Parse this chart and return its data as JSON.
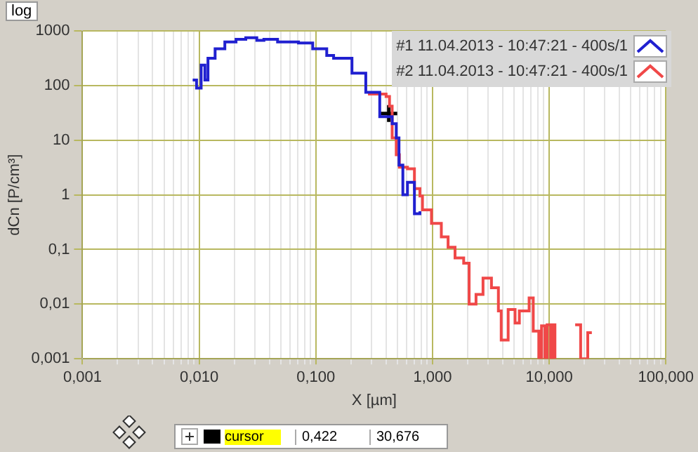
{
  "chart_data": {
    "type": "step",
    "xlabel": "X [µm]",
    "ylabel": "dCn [P/cm³]",
    "log": "xy",
    "grid": true,
    "legend": "top right",
    "xlim": [
      0.001,
      100
    ],
    "ylim": [
      0.001,
      1000
    ],
    "xticks": [
      {
        "value": 0.001,
        "label": "0,001"
      },
      {
        "value": 0.002,
        "label": null
      },
      {
        "value": 0.003,
        "label": null
      },
      {
        "value": 0.004,
        "label": null
      },
      {
        "value": 0.005,
        "label": null
      },
      {
        "value": 0.006,
        "label": null
      },
      {
        "value": 0.007,
        "label": null
      },
      {
        "value": 0.008,
        "label": null
      },
      {
        "value": 0.009,
        "label": null
      },
      {
        "value": 0.01,
        "label": "0,010"
      },
      {
        "value": 0.02,
        "label": null
      },
      {
        "value": 0.03,
        "label": null
      },
      {
        "value": 0.04,
        "label": null
      },
      {
        "value": 0.05,
        "label": null
      },
      {
        "value": 0.06,
        "label": null
      },
      {
        "value": 0.07,
        "label": null
      },
      {
        "value": 0.08,
        "label": null
      },
      {
        "value": 0.09,
        "label": null
      },
      {
        "value": 0.1,
        "label": "0,100"
      },
      {
        "value": 0.2,
        "label": null
      },
      {
        "value": 0.3,
        "label": null
      },
      {
        "value": 0.4,
        "label": null
      },
      {
        "value": 0.5,
        "label": null
      },
      {
        "value": 0.6,
        "label": null
      },
      {
        "value": 0.7,
        "label": null
      },
      {
        "value": 0.8,
        "label": null
      },
      {
        "value": 0.9,
        "label": null
      },
      {
        "value": 1,
        "label": "1,000"
      },
      {
        "value": 2,
        "label": null
      },
      {
        "value": 3,
        "label": null
      },
      {
        "value": 4,
        "label": null
      },
      {
        "value": 5,
        "label": null
      },
      {
        "value": 6,
        "label": null
      },
      {
        "value": 7,
        "label": null
      },
      {
        "value": 8,
        "label": null
      },
      {
        "value": 9,
        "label": null
      },
      {
        "value": 10,
        "label": "10,000"
      },
      {
        "value": 20,
        "label": null
      },
      {
        "value": 30,
        "label": null
      },
      {
        "value": 40,
        "label": null
      },
      {
        "value": 50,
        "label": null
      },
      {
        "value": 60,
        "label": null
      },
      {
        "value": 70,
        "label": null
      },
      {
        "value": 80,
        "label": null
      },
      {
        "value": 90,
        "label": null
      },
      {
        "value": 100,
        "label": "100,000"
      }
    ],
    "yticks": [
      {
        "value": 0.001,
        "label": "0,001"
      },
      {
        "value": 0.01,
        "label": "0,01"
      },
      {
        "value": 0.1,
        "label": "0,1"
      },
      1,
      10,
      100,
      1000
    ],
    "annotations": [
      "log",
      "cursor",
      "0,422",
      "30,676"
    ],
    "series": [
      {
        "name": "#1 11.04.2013 - 10:47:21 - 400s/1",
        "color": "#2020d0",
        "x": [
          0.0088,
          0.0095,
          0.0104,
          0.0112,
          0.0119,
          0.0137,
          0.0166,
          0.0207,
          0.0251,
          0.0312,
          0.0359,
          0.047,
          0.071,
          0.094,
          0.124,
          0.142,
          0.204,
          0.268,
          0.353,
          0.428,
          0.451,
          0.489,
          0.516,
          0.557,
          0.61,
          0.7,
          0.78
        ],
        "values": [
          126,
          90,
          237,
          126,
          316,
          470,
          630,
          700,
          750,
          670,
          700,
          630,
          600,
          470,
          355,
          316,
          168,
          75,
          27,
          27,
          20,
          11,
          3.5,
          1,
          1.7,
          0.45,
          0.5
        ]
      },
      {
        "name": "#2 11.04.2013 - 10:47:21 - 400s/1",
        "color": "#f04848",
        "x": [
          0.28,
          0.4,
          0.428,
          0.451,
          0.489,
          0.52,
          0.61,
          0.7,
          0.78,
          0.82,
          0.98,
          1.19,
          1.36,
          1.56,
          1.85,
          2.06,
          2.36,
          2.71,
          3.2,
          3.67,
          3.88,
          4.45,
          5.1,
          5.55,
          6.73,
          7.3,
          8.15,
          8.6,
          9.2,
          9.6,
          10.3,
          10.7,
          11.2,
          14,
          16.7,
          18.6,
          21.4,
          23.2
        ],
        "values": [
          70,
          63,
          42,
          11,
          5.4,
          3.2,
          3,
          1.3,
          0.95,
          0.53,
          0.3,
          0.17,
          0.11,
          0.07,
          0.056,
          0.01,
          0.015,
          0.03,
          0.02,
          0.0075,
          0.0022,
          0.008,
          0.0045,
          0.0075,
          0.013,
          0.0032,
          0.001,
          0.004,
          0.001,
          0.0042,
          0.001,
          0.0042,
          0.001,
          null,
          0.0042,
          0.001,
          0.003,
          0.003
        ]
      },
      {
        "type": "scatter",
        "marker": "cross",
        "color": "#000000",
        "x": [
          0.422
        ],
        "values": [
          30.676
        ]
      }
    ]
  }
}
